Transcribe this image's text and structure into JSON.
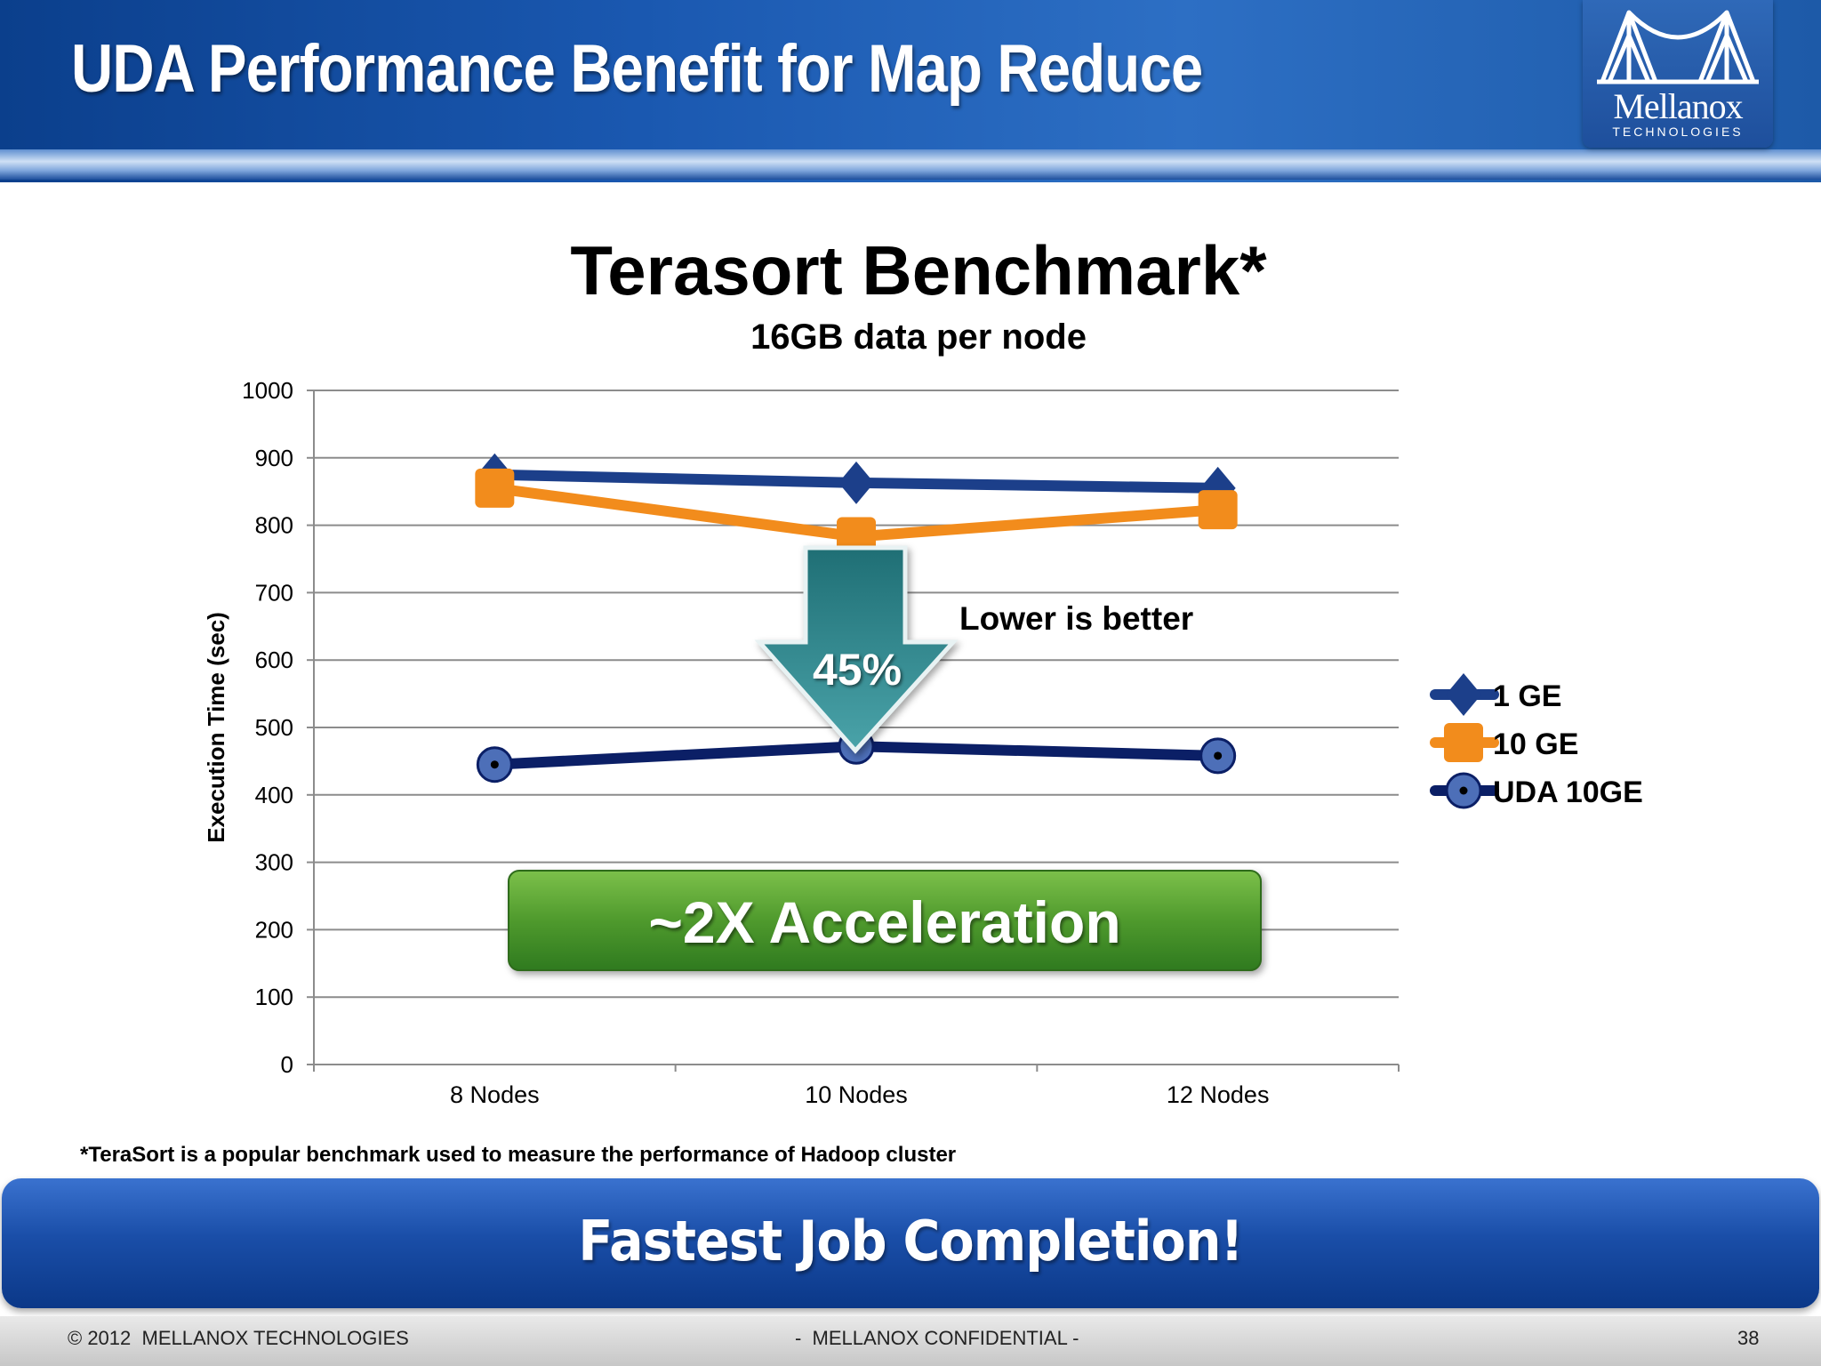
{
  "slide": {
    "title": "UDA Performance Benefit for Map Reduce",
    "logo_word": "Mellanox",
    "logo_sub": "TECHNOLOGIES",
    "footnote": "*TeraSort is a popular benchmark used to measure the performance of Hadoop cluster",
    "banner": "Fastest Job Completion!",
    "footer_left": "© 2012  MELLANOX TECHNOLOGIES",
    "footer_center": "-  MELLANOX CONFIDENTIAL -",
    "page_number": "38"
  },
  "chart_data": {
    "type": "line",
    "title": "Terasort Benchmark*",
    "subtitle": "16GB data per node",
    "ylabel": "Execution Time (sec)",
    "xlabel": "",
    "categories": [
      "8 Nodes",
      "10 Nodes",
      "12 Nodes"
    ],
    "ylim": [
      0,
      1000
    ],
    "yticks": [
      0,
      100,
      200,
      300,
      400,
      500,
      600,
      700,
      800,
      900,
      1000
    ],
    "grid": true,
    "legend_position": "right",
    "series": [
      {
        "name": "1 GE",
        "values": [
          875,
          863,
          855
        ],
        "color": "#1c3f8a",
        "marker": "diamond"
      },
      {
        "name": "10 GE",
        "values": [
          855,
          783,
          823
        ],
        "color": "#f28c1c",
        "marker": "square"
      },
      {
        "name": "UDA 10GE",
        "values": [
          445,
          472,
          458
        ],
        "color": "#0b1f66",
        "marker": "circle"
      }
    ],
    "annotations": {
      "arrow_label": "45%",
      "note": "Lower is better",
      "callout": "~2X Acceleration"
    }
  }
}
